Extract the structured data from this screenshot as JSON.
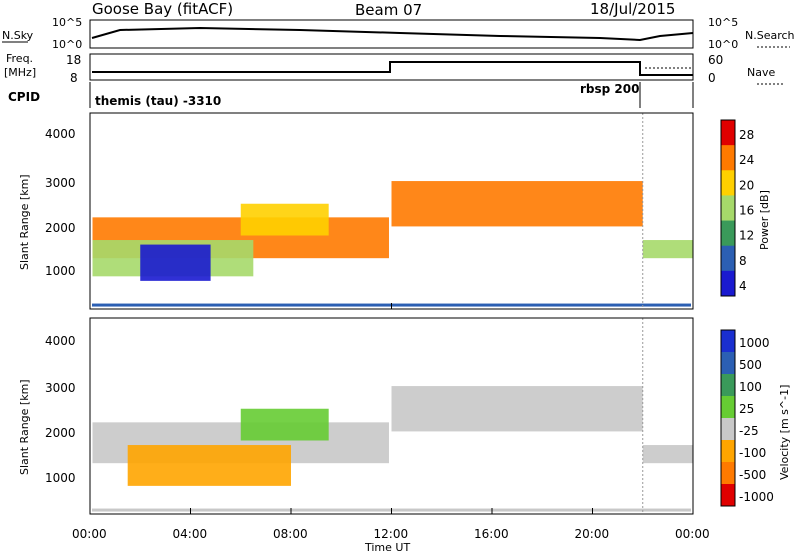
{
  "header": {
    "station": "Goose Bay (fitACF)",
    "beam": "Beam 07",
    "date": "18/Jul/2015"
  },
  "noise_panel": {
    "left_label": "N.Sky",
    "right_label": "N.Search",
    "left_ticks": [
      "10^5",
      "10^0"
    ],
    "right_ticks": [
      "10^5",
      "10^0"
    ]
  },
  "freq_panel": {
    "left_label_line1": "Freq.",
    "left_label_line2": "[MHz]",
    "right_label": "Nave",
    "left_ticks": [
      "18",
      "8"
    ],
    "right_ticks": [
      "60",
      "0"
    ]
  },
  "cpid_panel": {
    "label": "CPID",
    "program_1": "themis (tau) -3310",
    "program_2": "rbsp 200"
  },
  "time_axis": {
    "label": "Time UT",
    "ticks": [
      "00:00",
      "04:00",
      "08:00",
      "12:00",
      "16:00",
      "20:00",
      "00:00"
    ]
  },
  "chart_data": [
    {
      "type": "heatmap",
      "name": "Power",
      "ylabel": "Slant Range [km]",
      "yticks": [
        "4000",
        "3000",
        "2000",
        "1000"
      ],
      "ylim": [
        180,
        4500
      ],
      "xlim_hours": [
        0,
        24
      ],
      "colorbar_label": "Power [dB]",
      "colorbar_ticks": [
        "28",
        "24",
        "20",
        "16",
        "12",
        "8",
        "4"
      ],
      "colorscale": [
        "#e00000",
        "#ff7a00",
        "#ffd000",
        "#a6d96a",
        "#3a9a5a",
        "#2b5fb3",
        "#1a1ad0"
      ],
      "regions": [
        {
          "t0": 0.1,
          "t1": 11.9,
          "r0": 1300,
          "r1": 2200,
          "level": 1
        },
        {
          "t0": 0.1,
          "t1": 6.5,
          "r0": 900,
          "r1": 1700,
          "level": 3
        },
        {
          "t0": 2.0,
          "t1": 4.8,
          "r0": 800,
          "r1": 1600,
          "level": 6
        },
        {
          "t0": 6.0,
          "t1": 9.5,
          "r0": 1800,
          "r1": 2500,
          "level": 2
        },
        {
          "t0": 12.0,
          "t1": 22.0,
          "r0": 2000,
          "r1": 3000,
          "level": 1
        },
        {
          "t0": 22.0,
          "t1": 24.0,
          "r0": 1300,
          "r1": 1700,
          "level": 3
        }
      ]
    },
    {
      "type": "heatmap",
      "name": "Velocity",
      "ylabel": "Slant Range [km]",
      "yticks": [
        "4000",
        "3000",
        "2000",
        "1000"
      ],
      "ylim": [
        180,
        4500
      ],
      "xlim_hours": [
        0,
        24
      ],
      "colorbar_label": "Velocity [m s^-1]",
      "colorbar_ticks": [
        "1000",
        "500",
        "100",
        "25",
        "-25",
        "-100",
        "-500",
        "-1000"
      ],
      "colorscale": [
        "#1a2fd0",
        "#2b5fb3",
        "#3a9a5a",
        "#66cc33",
        "#c8c8c8",
        "#ffa500",
        "#ff7a00",
        "#e00000"
      ],
      "regions": [
        {
          "t0": 0.1,
          "t1": 11.9,
          "r0": 1300,
          "r1": 2200,
          "level": 4
        },
        {
          "t0": 1.5,
          "t1": 8.0,
          "r0": 800,
          "r1": 1700,
          "level": 5
        },
        {
          "t0": 6.0,
          "t1": 9.5,
          "r0": 1800,
          "r1": 2500,
          "level": 3
        },
        {
          "t0": 12.0,
          "t1": 22.0,
          "r0": 2000,
          "r1": 3000,
          "level": 4
        },
        {
          "t0": 22.0,
          "t1": 24.0,
          "r0": 1300,
          "r1": 1700,
          "level": 4
        }
      ]
    }
  ]
}
